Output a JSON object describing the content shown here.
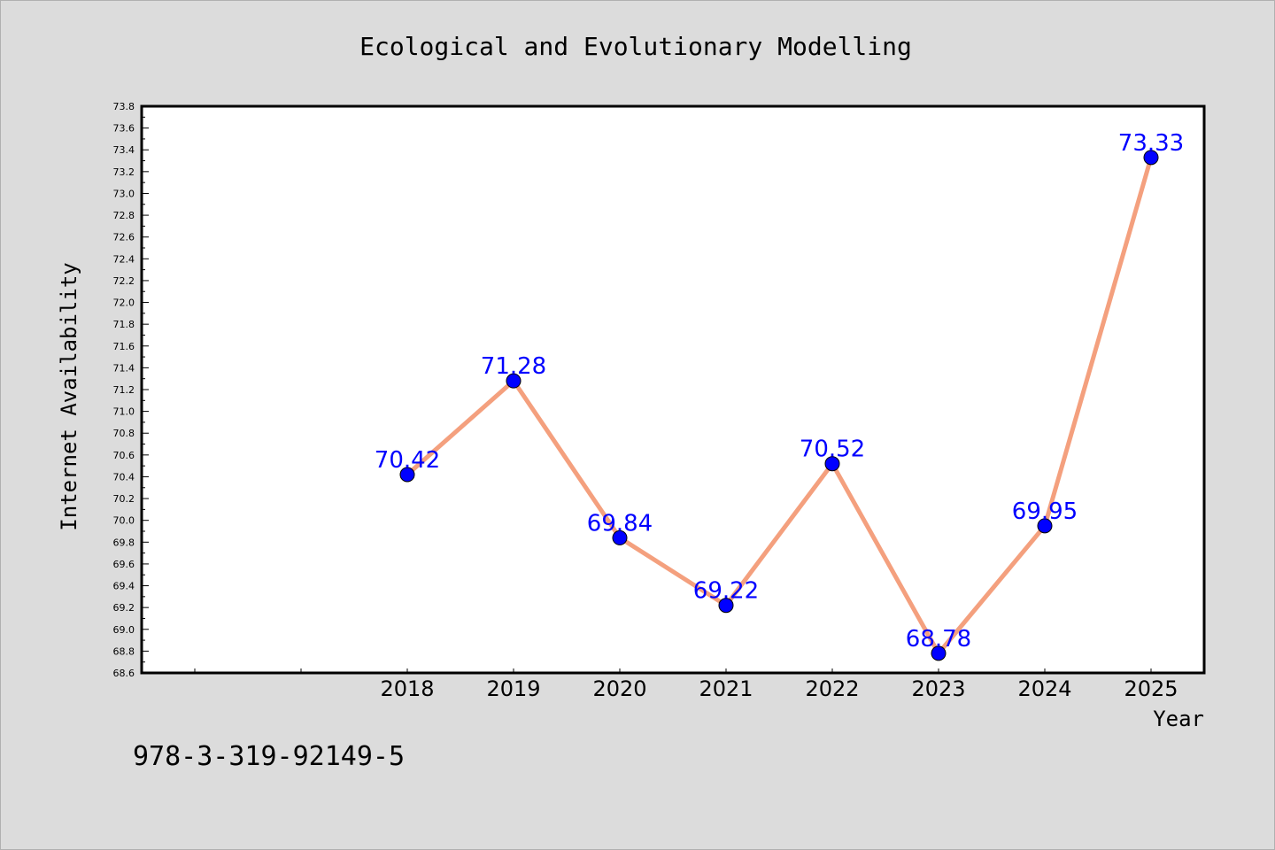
{
  "chart_data": {
    "type": "line",
    "title": "Ecological and Evolutionary Modelling",
    "xlabel": "Year",
    "ylabel": "Internet Availability",
    "x": [
      "2018",
      "2019",
      "2020",
      "2021",
      "2022",
      "2023",
      "2024",
      "2025"
    ],
    "series": [
      {
        "values": [
          70.42,
          71.28,
          69.84,
          69.22,
          70.52,
          68.78,
          69.95,
          73.33
        ],
        "data_labels": [
          "70.42",
          "71.28",
          "69.84",
          "69.22",
          "70.52",
          "68.78",
          "69.95",
          "73.33"
        ]
      }
    ],
    "ylim": [
      68.6,
      73.8
    ],
    "ytick_step": 0.2,
    "yticks": [
      "68.6",
      "68.8",
      "69.0",
      "69.2",
      "69.4",
      "69.6",
      "69.8",
      "70.0",
      "70.2",
      "70.4",
      "70.6",
      "70.8",
      "71.0",
      "71.2",
      "71.4",
      "71.6",
      "71.8",
      "72.0",
      "72.2",
      "72.4",
      "72.6",
      "72.8",
      "73.0",
      "73.2",
      "73.4",
      "73.6",
      "73.8"
    ],
    "grid": false,
    "line_color": "#f4a07e",
    "marker_color": "#0000ff",
    "label_color": "#0000ff"
  },
  "footer": {
    "isbn": "978-3-319-92149-5"
  }
}
